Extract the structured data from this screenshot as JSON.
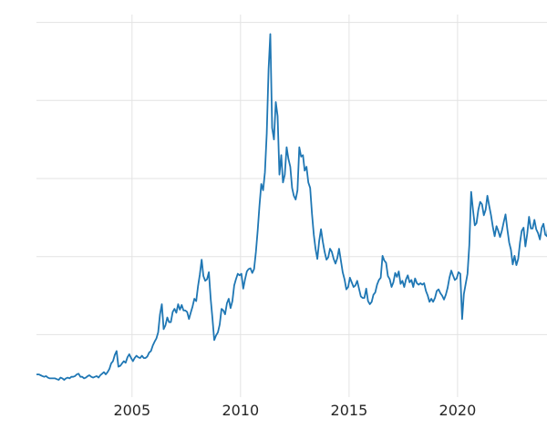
{
  "chart_data": {
    "type": "line",
    "title": "",
    "xlabel": "",
    "ylabel": "",
    "legend": "none",
    "grid": "on",
    "series": [
      {
        "name": "price-series",
        "x_start_year": 2000.625,
        "x_step_years": 0.083333,
        "values": [
          4.9,
          4.9,
          4.8,
          4.7,
          4.6,
          4.7,
          4.5,
          4.4,
          4.4,
          4.4,
          4.4,
          4.3,
          4.2,
          4.5,
          4.4,
          4.2,
          4.4,
          4.5,
          4.4,
          4.6,
          4.6,
          4.7,
          4.9,
          5.0,
          4.6,
          4.6,
          4.4,
          4.5,
          4.7,
          4.8,
          4.6,
          4.5,
          4.6,
          4.7,
          4.5,
          4.8,
          5.0,
          5.2,
          4.9,
          5.2,
          5.6,
          6.3,
          6.6,
          7.4,
          7.9,
          5.9,
          6.0,
          6.3,
          6.6,
          6.4,
          7.1,
          7.5,
          7.0,
          6.6,
          7.0,
          7.3,
          7.1,
          7.0,
          7.3,
          7.0,
          7.0,
          7.2,
          7.7,
          7.9,
          8.6,
          9.1,
          9.5,
          10.3,
          12.6,
          13.9,
          10.7,
          11.2,
          12.2,
          11.6,
          11.6,
          12.9,
          13.3,
          12.8,
          13.9,
          13.2,
          13.8,
          13.1,
          13.1,
          12.9,
          12.0,
          12.8,
          13.6,
          14.6,
          14.3,
          16.2,
          17.7,
          19.6,
          17.5,
          16.9,
          17.1,
          18.0,
          14.6,
          12.0,
          9.3,
          9.9,
          10.3,
          11.3,
          13.3,
          13.1,
          12.6,
          14.0,
          14.6,
          13.4,
          14.3,
          16.3,
          17.1,
          17.8,
          17.6,
          17.8,
          15.9,
          17.1,
          18.1,
          18.4,
          18.5,
          17.9,
          18.4,
          20.6,
          23.4,
          26.5,
          29.3,
          28.5,
          30.8,
          35.8,
          44.0,
          48.5,
          36.5,
          35.0,
          39.8,
          38.0,
          30.5,
          33.0,
          29.5,
          30.5,
          34.0,
          32.5,
          31.5,
          28.8,
          27.8,
          27.3,
          28.5,
          34.0,
          32.8,
          33.0,
          31.0,
          31.5,
          29.5,
          28.8,
          25.5,
          22.8,
          21.0,
          19.7,
          22.0,
          23.5,
          21.9,
          20.6,
          19.6,
          19.9,
          21.0,
          20.6,
          19.7,
          19.1,
          19.8,
          21.0,
          19.5,
          18.0,
          17.1,
          15.8,
          16.1,
          17.3,
          16.7,
          16.1,
          16.3,
          16.9,
          15.9,
          14.9,
          14.7,
          14.7,
          15.9,
          14.3,
          13.9,
          14.2,
          15.1,
          15.4,
          16.4,
          17.0,
          17.3,
          20.1,
          19.5,
          19.2,
          17.5,
          17.1,
          16.1,
          16.7,
          17.9,
          17.4,
          18.1,
          16.5,
          16.9,
          16.1,
          17.1,
          17.6,
          16.7,
          17.0,
          16.1,
          17.2,
          16.6,
          16.4,
          16.6,
          16.4,
          16.6,
          15.6,
          15.0,
          14.2,
          14.6,
          14.2,
          14.7,
          15.6,
          15.8,
          15.3,
          15.0,
          14.5,
          15.1,
          16.0,
          17.3,
          18.2,
          17.6,
          17.0,
          17.2,
          18.0,
          17.8,
          12.0,
          15.2,
          16.5,
          17.8,
          21.5,
          28.3,
          26.0,
          24.0,
          24.3,
          26.0,
          27.0,
          26.7,
          25.3,
          26.0,
          27.8,
          26.5,
          25.3,
          23.8,
          22.6,
          23.9,
          23.3,
          22.5,
          23.3,
          24.4,
          25.4,
          23.5,
          21.8,
          20.9,
          19.0,
          20.1,
          18.9,
          19.7,
          21.8,
          23.3,
          23.7,
          21.3,
          22.9,
          25.1,
          23.6,
          23.6,
          24.7,
          23.5,
          23.0,
          22.2,
          23.7,
          24.2,
          22.8,
          22.6,
          25.0,
          27.9,
          30.5,
          29.4,
          30.6,
          28.3,
          31.2,
          33.0,
          31.3,
          30.0,
          30.5,
          32.2,
          34.5
        ]
      }
    ],
    "xlim": [
      2000.6,
      2025.8
    ],
    "ylim": [
      2,
      51
    ],
    "x_ticks": [
      2005,
      2010,
      2015,
      2020
    ],
    "x_tick_labels": [
      "2005",
      "2010",
      "2015",
      "2020"
    ],
    "y_gridline_values": [
      10,
      20,
      30,
      40,
      50
    ],
    "line_color": "#1f77b4",
    "grid_color": "#e3e3e3",
    "tick_label_color": "#262626",
    "background_color": "#ffffff"
  }
}
